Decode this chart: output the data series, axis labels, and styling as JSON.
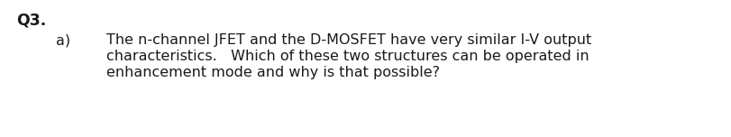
{
  "background_color": "#ffffff",
  "q_label": "Q3.",
  "a_label": "a)",
  "line1": "The n-channel JFET and the D-MOSFET have very similar I-V output",
  "line2": "characteristics.   Which of these two structures can be operated in",
  "line3": "enhancement mode and why is that possible?",
  "text_color": "#1a1a1a",
  "fontsize": 11.5,
  "font_family": "DejaVu Sans",
  "q_label_fontsize": 12.5,
  "q_label_bold": true
}
